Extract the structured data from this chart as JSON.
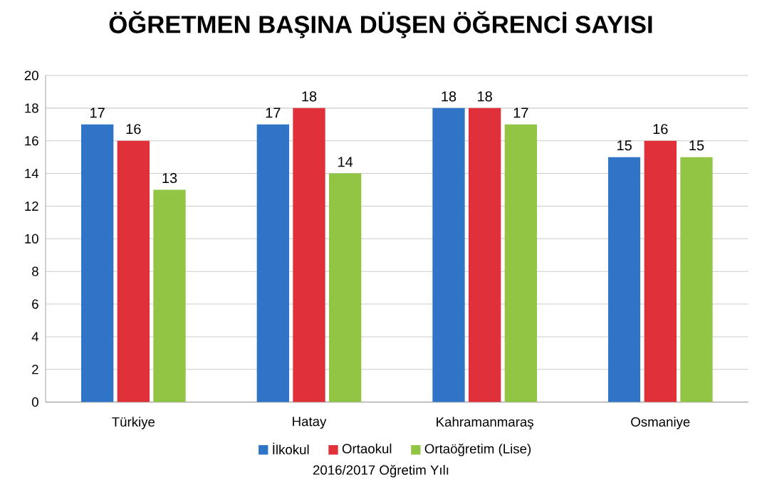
{
  "chart_data": {
    "type": "bar",
    "title": "ÖĞRETMEN BAŞINA DÜŞEN ÖĞRENCİ SAYISI",
    "categories": [
      "Türkiye",
      "Hatay",
      "Kahramanmaraş",
      "Osmaniye"
    ],
    "series": [
      {
        "name": "İlkokul",
        "color": "#2f74c6",
        "values": [
          17,
          17,
          18,
          15
        ]
      },
      {
        "name": "Ortaokul",
        "color": "#e0303a",
        "values": [
          16,
          18,
          18,
          16
        ]
      },
      {
        "name": "Ortaöğretim (Lise)",
        "color": "#92c544",
        "values": [
          13,
          14,
          17,
          15
        ]
      }
    ],
    "ylim": [
      0,
      20
    ],
    "yticks": [
      0,
      2,
      4,
      6,
      8,
      10,
      12,
      14,
      16,
      18,
      20
    ],
    "grid": "y",
    "legend": "bottom",
    "data_labels": true,
    "annotations": [
      "2016/2017 Öğretim Yılı"
    ]
  }
}
